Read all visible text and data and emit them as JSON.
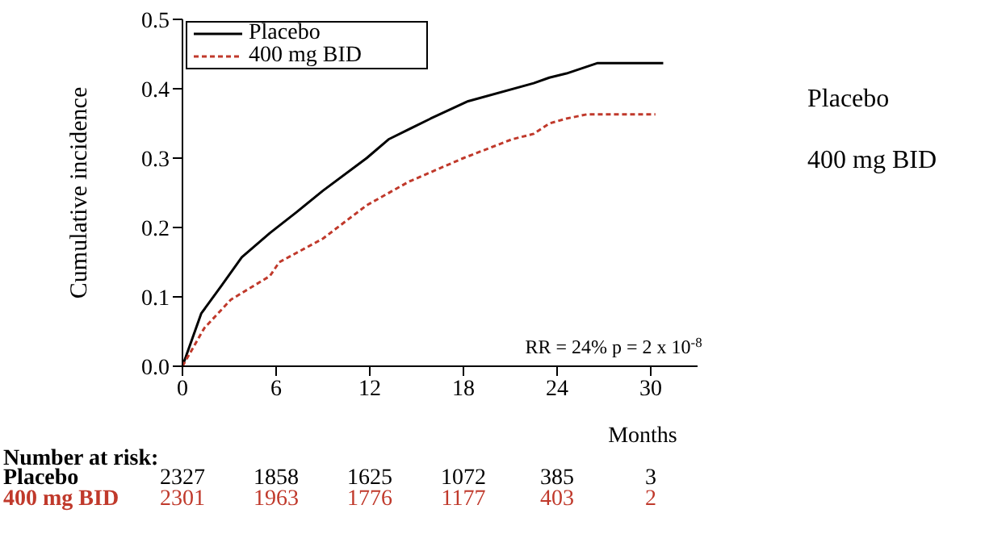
{
  "chart_data": {
    "type": "line",
    "xlabel": "Months",
    "ylabel": "Cumulative incidence",
    "xlim": [
      0,
      33
    ],
    "xticks": [
      0,
      6,
      12,
      18,
      24,
      30
    ],
    "ylim": [
      0,
      0.5
    ],
    "yticks": [
      {
        "value": 0,
        "label": "0.0"
      },
      0.1,
      0.2,
      0.3,
      0.4,
      0.5
    ],
    "legend": "top left",
    "series": [
      {
        "name": "Placebo",
        "color": "#000000",
        "line_style": "solid",
        "x": [
          0,
          1.2,
          2.5,
          3.8,
          5.6,
          7.3,
          9,
          11.8,
          13.2,
          15.9,
          18.3,
          22.5,
          23.5,
          24.6,
          26.6,
          30.8
        ],
        "values": [
          0,
          0.076,
          0.116,
          0.157,
          0.192,
          0.222,
          0.253,
          0.3,
          0.327,
          0.357,
          0.382,
          0.408,
          0.416,
          0.422,
          0.437,
          0.437
        ]
      },
      {
        "name": "400 mg BID",
        "color": "#c0392b",
        "line_style": "dashed",
        "x": [
          0,
          1.4,
          3.1,
          5.6,
          6.2,
          9,
          11.8,
          14.5,
          18,
          21.1,
          22.5,
          23.5,
          24.6,
          25.9,
          30.3
        ],
        "values": [
          0,
          0.055,
          0.096,
          0.13,
          0.15,
          0.184,
          0.232,
          0.266,
          0.3,
          0.327,
          0.335,
          0.35,
          0.357,
          0.363,
          0.363
        ]
      }
    ],
    "annotations": [
      "RR = 24% p = 2 x 10$^{-8}$",
      "Placebo",
      "400 mg BID",
      "Number at risk:",
      "Placebo",
      "2327",
      "1858",
      "1625",
      "1072",
      "385",
      "3",
      "400 mg BID",
      "2301",
      "1963",
      "1776",
      "1177",
      "403",
      "2"
    ]
  }
}
